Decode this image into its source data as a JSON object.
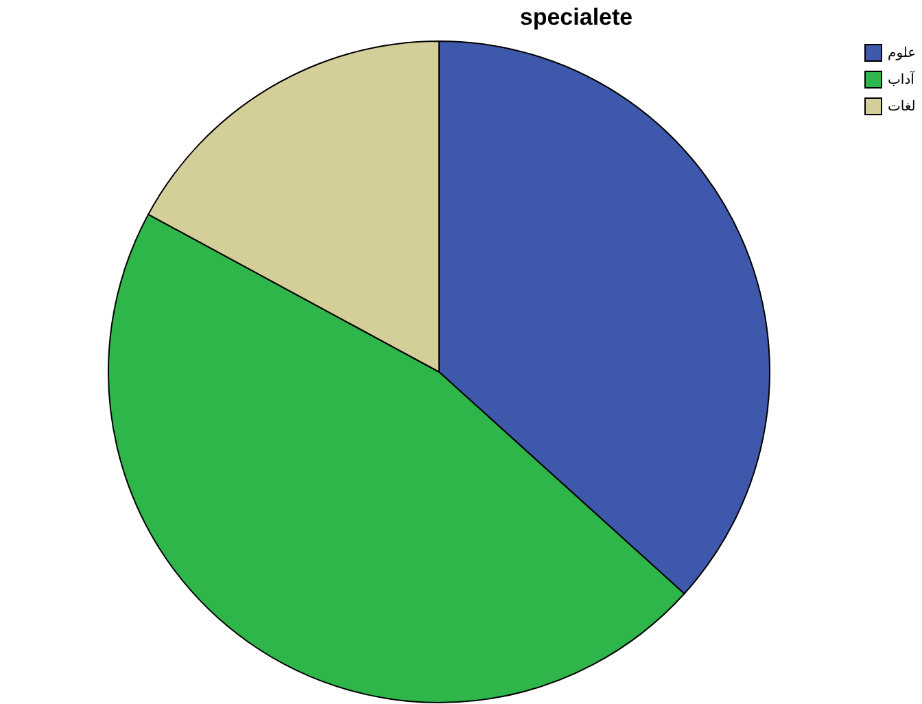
{
  "chart_data": {
    "type": "pie",
    "title": "specialete",
    "categories": [
      "علوم",
      "آداب",
      "لغات"
    ],
    "values": [
      36.7,
      46.2,
      17.1
    ],
    "colors": [
      "#3e58ac",
      "#2eb64a",
      "#d4ce98"
    ],
    "legend": "top right"
  }
}
